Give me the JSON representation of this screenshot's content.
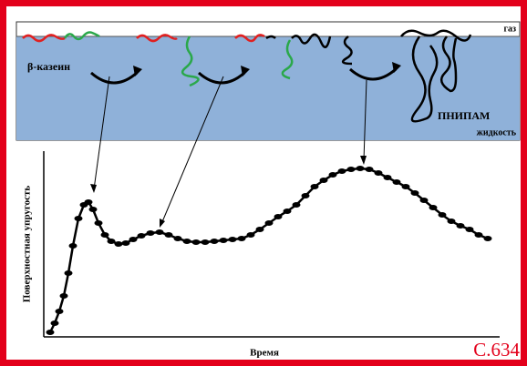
{
  "diagram": {
    "gas": "газ",
    "protein": "β-казеин",
    "polymer": "ПНИПАМ",
    "liquid": "жидкость"
  },
  "page_label": "С.634",
  "chart_data": {
    "type": "line",
    "x_label": "Время",
    "y_label": "Поверхностная упругость",
    "x": [
      1.4,
      2.4,
      3.4,
      4.4,
      5.4,
      6.4,
      7.6,
      8.8,
      9.8,
      10.8,
      12,
      13.4,
      14.8,
      16.4,
      18,
      19.6,
      21.4,
      23.4,
      25.4,
      27.4,
      29.4,
      31.4,
      33.4,
      35.4,
      37.4,
      39.4,
      41.4,
      43.4,
      45.4,
      47.4,
      49.4,
      51.4,
      53.4,
      55.4,
      57.4,
      59.4,
      61.4,
      63.4,
      65.4,
      67.4,
      69.4,
      71.4,
      73.4,
      75.4,
      77.4,
      79.4,
      81.4,
      83.4,
      85.4,
      87.4,
      89.4,
      91.4,
      93.4,
      95.4,
      97.4
    ],
    "series": [
      {
        "color": "#000000",
        "values": [
          2.5,
          7.5,
          14,
          22.5,
          35,
          50,
          65,
          72.5,
          74,
          70,
          62.5,
          56,
          52.5,
          51,
          51.5,
          53.5,
          55.5,
          57,
          57.5,
          56,
          54,
          52.5,
          52,
          52,
          52.5,
          53,
          53.5,
          54,
          56,
          59,
          62.5,
          66,
          69,
          72.5,
          77.5,
          82.5,
          86,
          89,
          91,
          92,
          92.5,
          92,
          90,
          87.5,
          85,
          82.5,
          79,
          75,
          71,
          67,
          63.5,
          61,
          59,
          56,
          54
        ]
      }
    ],
    "xlim": [
      0,
      100
    ],
    "ylim": [
      0,
      100
    ]
  }
}
